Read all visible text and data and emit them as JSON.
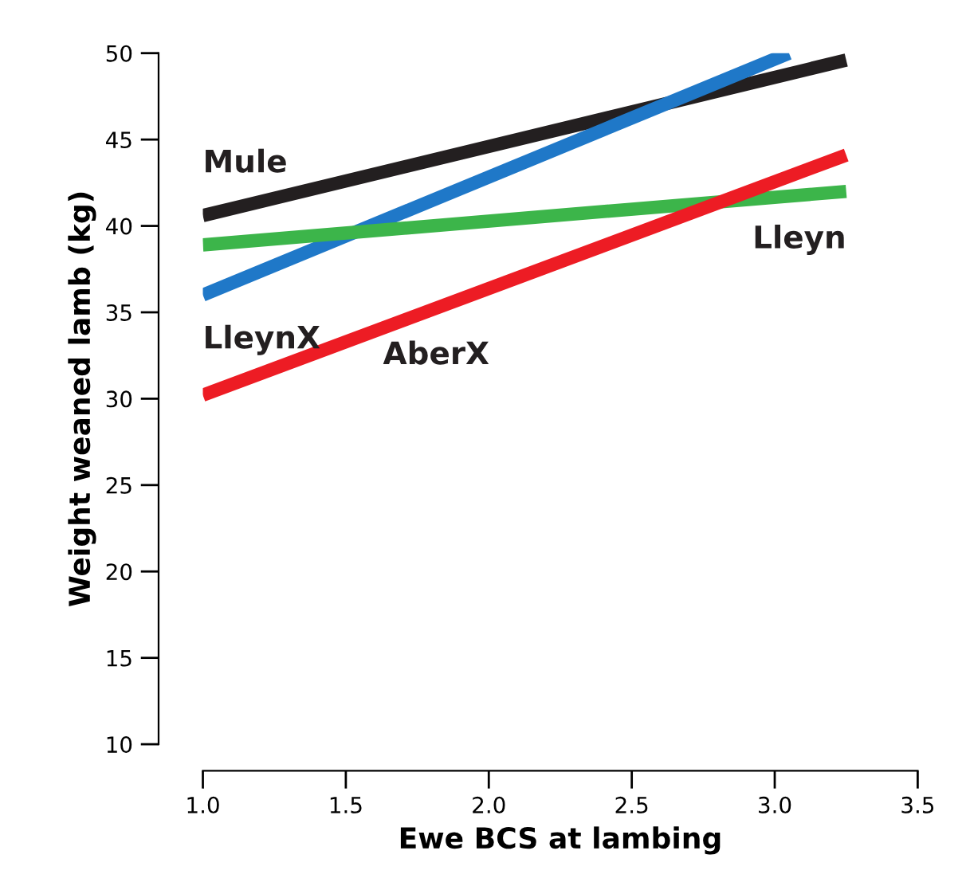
{
  "chart_data": {
    "type": "line",
    "xlabel": "Ewe BCS at lambing",
    "ylabel": "Weight weaned lamb (kg)",
    "xlim": [
      1.0,
      3.5
    ],
    "xticks": [
      {
        "value": 1.0,
        "label": "1.0"
      },
      {
        "value": 1.5,
        "label": "1.5"
      },
      {
        "value": 2.0,
        "label": "2.0"
      },
      {
        "value": 2.5,
        "label": "2.5"
      },
      {
        "value": 3.0,
        "label": "3.0"
      },
      {
        "value": 3.5,
        "label": "3.5"
      }
    ],
    "ylim": [
      10,
      50
    ],
    "yticks": [
      10,
      15,
      20,
      25,
      30,
      35,
      40,
      45,
      50
    ],
    "grid": false,
    "legend": false,
    "marker": "none",
    "line_style": "solid",
    "series": [
      {
        "name": "Mule",
        "color": "#231f20",
        "x": [
          1.0,
          3.25
        ],
        "values": [
          40.6,
          49.6
        ]
      },
      {
        "name": "LleynX",
        "color": "#1f78c8",
        "x": [
          1.0,
          3.05
        ],
        "values": [
          36.0,
          50.0
        ]
      },
      {
        "name": "Lleyn",
        "color": "#3cb54a",
        "x": [
          1.0,
          3.25
        ],
        "values": [
          38.9,
          42.0
        ]
      },
      {
        "name": "AberX",
        "color": "#ed1c24",
        "x": [
          1.0,
          3.25
        ],
        "values": [
          30.2,
          44.1
        ]
      }
    ]
  }
}
